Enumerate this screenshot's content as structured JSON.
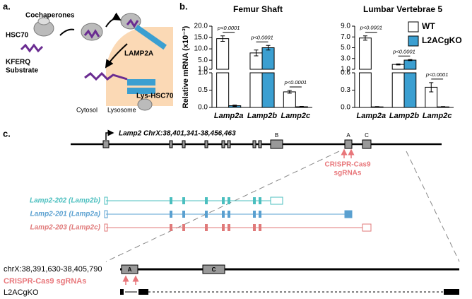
{
  "panel_labels": [
    "a.",
    "b.",
    "c."
  ],
  "panel_a": {
    "cochaperones": "Cochaperones",
    "hsc70": "HSC70",
    "substrate": [
      "KFERQ",
      "Substrate"
    ],
    "lamp2a": "LAMP2A",
    "lys_hsc70": "Lys-HSC70",
    "cytosol": "Cytosol",
    "lysosome": "Lysosome"
  },
  "chart_data": [
    {
      "type": "bar",
      "title": "Femur Shaft",
      "y_label": "Relative mRNA (x10⁻³)",
      "categories": [
        "Lamp2a",
        "Lamp2b",
        "Lamp2c"
      ],
      "series": [
        {
          "color": "#ffffff",
          "values": [
            14.5,
            8.2,
            0.45
          ],
          "errors": [
            1.2,
            1.3,
            0.04
          ]
        },
        {
          "color": "#3b9fd1",
          "values": [
            0.05,
            10.5,
            0.02
          ],
          "errors": [
            0.02,
            1.0,
            0.01
          ]
        }
      ],
      "annotations": [
        "p<0.0001",
        "p<0.0001",
        "p<0.0001"
      ],
      "ylim": [
        [
          0,
          1
        ],
        [
          1,
          20
        ]
      ],
      "yticks": [
        [
          {
            "value": 0,
            "label": "0.0"
          },
          {
            "value": 0.5,
            "label": "0.5"
          },
          {
            "value": 1,
            "label": "1.0"
          }
        ],
        [
          {
            "value": 1,
            "label": "1.0"
          },
          {
            "value": 5,
            "label": "5.0"
          },
          {
            "value": 10,
            "label": "10.0"
          },
          {
            "value": 15,
            "label": "15.0"
          },
          {
            "value": 20,
            "label": "20.0"
          }
        ]
      ]
    },
    {
      "type": "bar",
      "title": "Lumbar Vertebrae 5",
      "categories": [
        "Lamp2a",
        "Lamp2b",
        "Lamp2c"
      ],
      "series": [
        {
          "name": "WT",
          "color": "#ffffff",
          "values": [
            6.8,
            1.9,
            0.35
          ],
          "errors": [
            0.4,
            0.1,
            0.08
          ]
        },
        {
          "name": "L2ACgKO",
          "color": "#3b9fd1",
          "values": [
            0.01,
            2.7,
            0.01
          ],
          "errors": [
            0.005,
            0.1,
            0.005
          ]
        }
      ],
      "annotations": [
        "p<0.0001",
        "p<0.0001",
        "p<0.0001"
      ],
      "legend": "upper right",
      "ylim": [
        [
          0,
          0.6
        ],
        [
          1,
          9
        ]
      ],
      "yticks": [
        [
          {
            "value": 0,
            "label": "0.0"
          },
          {
            "value": 0.3,
            "label": "0.3"
          },
          {
            "value": 0.6,
            "label": "0.6"
          }
        ],
        [
          {
            "value": 1,
            "label": "1.0"
          },
          {
            "value": 3,
            "label": "3.0"
          },
          {
            "value": 5,
            "label": "5.0"
          },
          {
            "value": 7,
            "label": "7.0"
          },
          {
            "value": 9,
            "label": "9.0"
          }
        ]
      ]
    }
  ],
  "panel_c": {
    "gene_label": "Lamp2 ChrX:38,401,341-38,456,463",
    "exons": [
      "B",
      "A",
      "C"
    ],
    "sgrna_label": [
      "CRISPR-Cas9",
      "sgRNAs"
    ],
    "transcripts": [
      {
        "label": "Lamp2-202 (Lamp2b)",
        "color": "#4bbfbf"
      },
      {
        "label": "Lamp2-201 (Lamp2a)",
        "color": "#5aa0d0"
      },
      {
        "label": "Lamp2-203 (Lamp2c)",
        "color": "#e07a7a"
      }
    ],
    "zoom_label": "chrX:38,391,630-38,405,790",
    "zoom_exons": [
      "A",
      "C"
    ],
    "zoom_sgrna_label": "CRISPR-Cas9 sgRNAs",
    "ko_label": "L2ACgKO"
  }
}
